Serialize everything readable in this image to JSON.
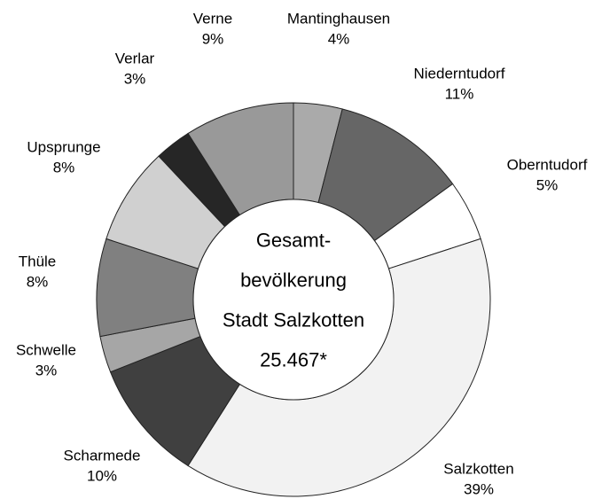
{
  "chart_data": {
    "type": "donut",
    "categories": [
      "Mantinghausen",
      "Niederntudorf",
      "Oberntudorf",
      "Salzkotten",
      "Scharmede",
      "Schwelle",
      "Thüle",
      "Upsprunge",
      "Verlar",
      "Verne"
    ],
    "values": [
      4,
      11,
      5,
      39,
      10,
      3,
      8,
      8,
      3,
      9
    ],
    "value_labels": [
      "4%",
      "11%",
      "5%",
      "39%",
      "10%",
      "3%",
      "8%",
      "8%",
      "3%",
      "9%"
    ],
    "colors": [
      "#aaaaaa",
      "#666666",
      "#ffffff",
      "#f2f2f2",
      "#404040",
      "#a6a6a6",
      "#808080",
      "#d0d0d0",
      "#262626",
      "#999999"
    ],
    "center_text": [
      "Gesamt-",
      "bevölkerung",
      "Stadt Salzkotten",
      "25.467*"
    ]
  }
}
